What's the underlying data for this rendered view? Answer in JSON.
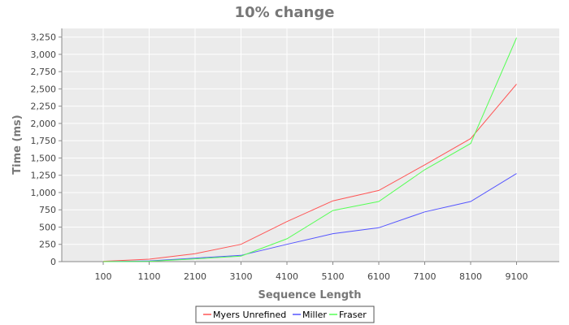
{
  "chart_data": {
    "type": "line",
    "title": "10% change",
    "xlabel": "Sequence Length",
    "ylabel": "Time (ms)",
    "categories": [
      "100",
      "1100",
      "2100",
      "3100",
      "4100",
      "5100",
      "6100",
      "7100",
      "8100",
      "9100"
    ],
    "ylim": [
      0,
      3375
    ],
    "y_ticks": [
      0,
      250,
      500,
      750,
      1000,
      1250,
      1500,
      1750,
      2000,
      2250,
      2500,
      2750,
      3000,
      3250
    ],
    "y_tick_labels": [
      "0",
      "250",
      "500",
      "750",
      "1,000",
      "1,250",
      "1,500",
      "1,750",
      "2,000",
      "2,250",
      "2,500",
      "2,750",
      "3,000",
      "3,250"
    ],
    "grid": true,
    "legend_position": "bottom",
    "series": [
      {
        "name": "Myers Unrefined",
        "color": "#ff5555",
        "values": [
          5,
          35,
          115,
          250,
          580,
          880,
          1030,
          1400,
          1780,
          2570
        ]
      },
      {
        "name": "Miller",
        "color": "#5555ff",
        "values": [
          0,
          10,
          50,
          90,
          250,
          405,
          490,
          720,
          870,
          1275
        ]
      },
      {
        "name": "Fraser",
        "color": "#55ff55",
        "values": [
          0,
          5,
          40,
          80,
          330,
          740,
          870,
          1330,
          1710,
          3240
        ]
      }
    ]
  }
}
